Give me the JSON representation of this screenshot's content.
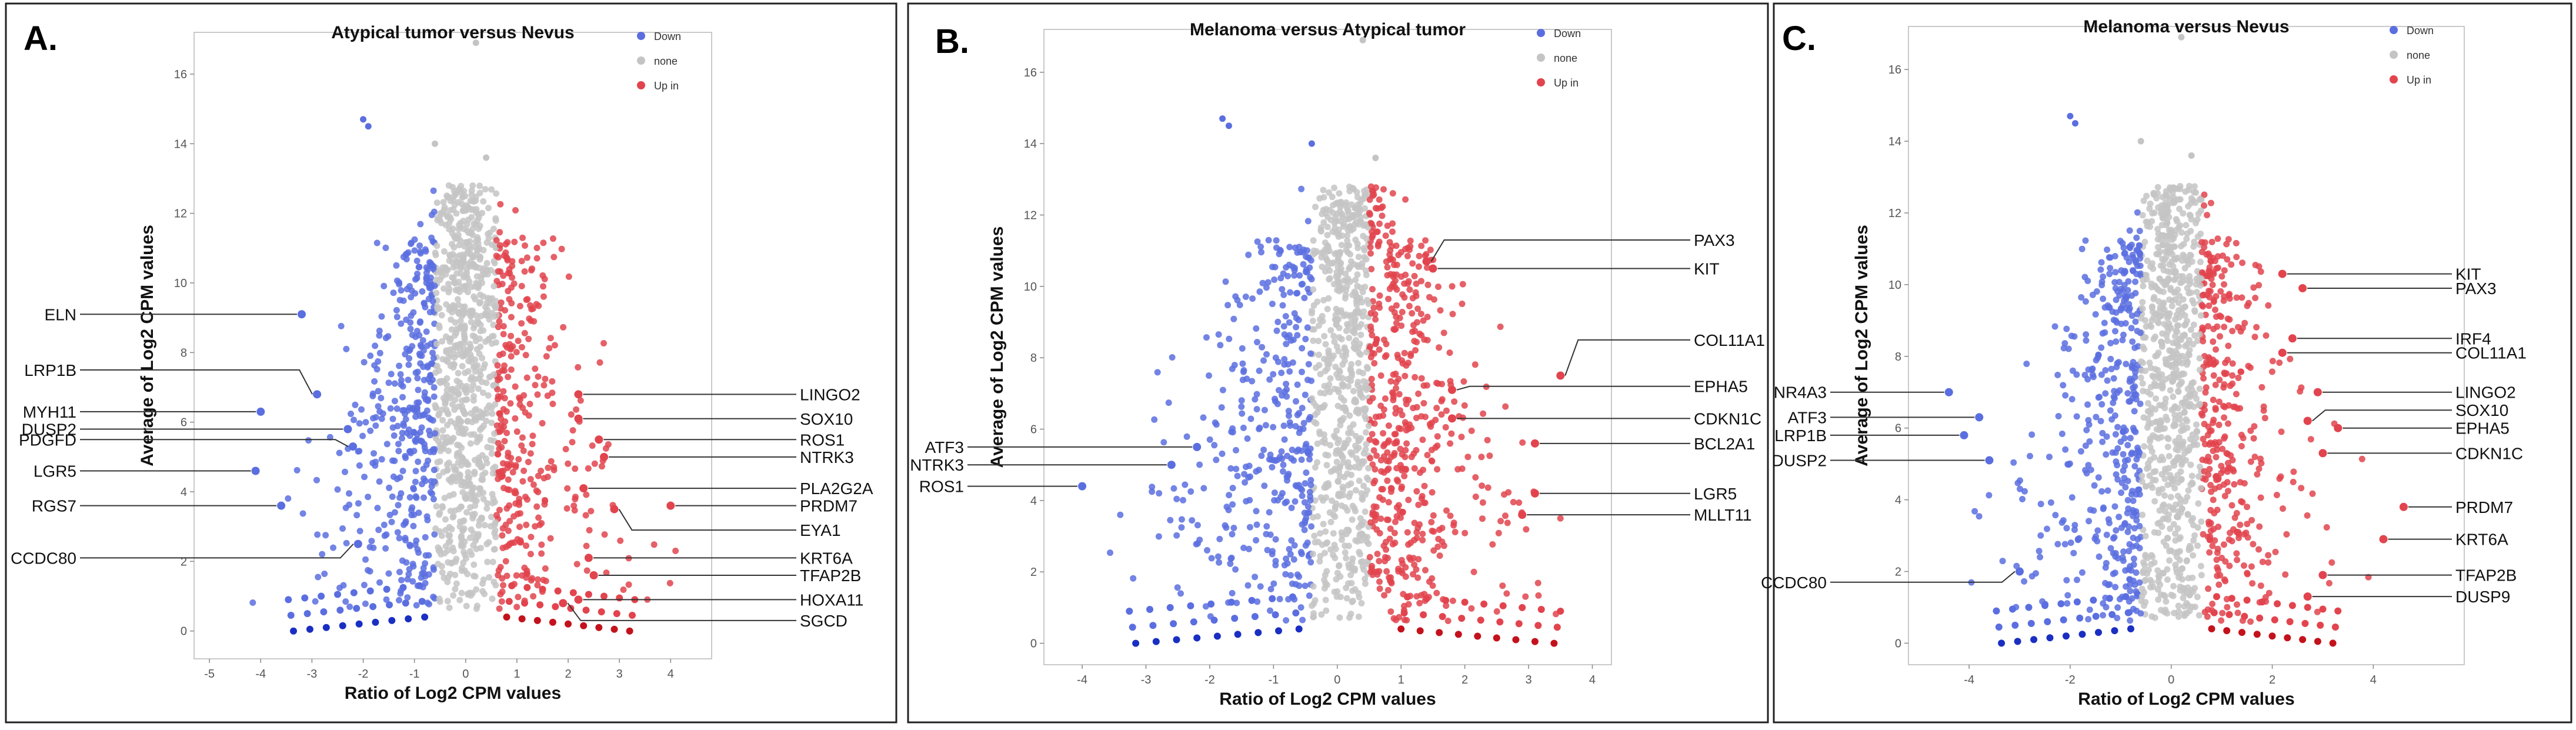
{
  "figure": {
    "panels": [
      {
        "letter": "A.",
        "title": "Atypical tumor versus Nevus"
      },
      {
        "letter": "B.",
        "title": "Melanoma versus Atypical tumor"
      },
      {
        "letter": "C.",
        "title": "Melanoma versus Nevus"
      }
    ]
  },
  "colors": {
    "down": "#5b6ee0",
    "none": "#c4c4c4",
    "up": "#e2444e",
    "down_dark": "#1a2fc2",
    "up_dark": "#c4121c"
  },
  "chart_data": [
    {
      "type": "scatter",
      "title": "Atypical tumor versus Nevus",
      "xlabel": "Ratio of Log2 CPM values",
      "ylabel": "Average of Log2 CPM values",
      "xlim": [
        -5.3,
        4.8
      ],
      "ylim": [
        -0.8,
        17.2
      ],
      "xticks": [
        "-5",
        "-4",
        "-3",
        "-2",
        "-1",
        "0",
        "1",
        "2",
        "3",
        "4"
      ],
      "yticks": [
        "0",
        "2",
        "4",
        "6",
        "8",
        "10",
        "12",
        "14",
        "16"
      ],
      "legend": {
        "position": "top-right",
        "entries": [
          "Down",
          "none",
          "Up in"
        ]
      },
      "down_threshold": -0.6,
      "up_threshold": 0.6,
      "core_center": 0.0,
      "labels": [
        {
          "gene": "ELN",
          "x": -3.2,
          "y": 9.1,
          "side": "left",
          "ly": 9.1
        },
        {
          "gene": "LRP1B",
          "x": -2.9,
          "y": 6.8,
          "side": "left",
          "ly": 7.5
        },
        {
          "gene": "MYH11",
          "x": -4.0,
          "y": 6.3,
          "side": "left",
          "ly": 6.3
        },
        {
          "gene": "DUSP2",
          "x": -2.3,
          "y": 5.8,
          "side": "left",
          "ly": 5.8
        },
        {
          "gene": "PDGFD",
          "x": -2.2,
          "y": 5.3,
          "side": "left",
          "ly": 5.5
        },
        {
          "gene": "LGR5",
          "x": -4.1,
          "y": 4.6,
          "side": "left",
          "ly": 4.6
        },
        {
          "gene": "RGS7",
          "x": -3.6,
          "y": 3.6,
          "side": "left",
          "ly": 3.6
        },
        {
          "gene": "CCDC80",
          "x": -2.1,
          "y": 2.5,
          "side": "left",
          "ly": 2.1
        },
        {
          "gene": "LINGO2",
          "x": 2.2,
          "y": 6.8,
          "side": "right",
          "ly": 6.8
        },
        {
          "gene": "SOX10",
          "x": 2.2,
          "y": 6.1,
          "side": "right",
          "ly": 6.1
        },
        {
          "gene": "ROS1",
          "x": 2.6,
          "y": 5.5,
          "side": "right",
          "ly": 5.5
        },
        {
          "gene": "NTRK3",
          "x": 2.7,
          "y": 5.0,
          "side": "right",
          "ly": 5.0
        },
        {
          "gene": "PLA2G2A",
          "x": 2.3,
          "y": 4.1,
          "side": "right",
          "ly": 4.1
        },
        {
          "gene": "PRDM7",
          "x": 4.0,
          "y": 3.6,
          "side": "right",
          "ly": 3.6
        },
        {
          "gene": "EYA1",
          "x": 2.9,
          "y": 3.5,
          "side": "right",
          "ly": 2.9
        },
        {
          "gene": "KRT6A",
          "x": 2.4,
          "y": 2.1,
          "side": "right",
          "ly": 2.1
        },
        {
          "gene": "TFAP2B",
          "x": 2.5,
          "y": 1.6,
          "side": "right",
          "ly": 1.6
        },
        {
          "gene": "HOXA11",
          "x": 2.2,
          "y": 0.9,
          "side": "right",
          "ly": 0.9
        },
        {
          "gene": "SGCD",
          "x": 1.9,
          "y": 0.8,
          "side": "right",
          "ly": 0.3
        }
      ]
    },
    {
      "type": "scatter",
      "title": "Melanoma versus Atypical tumor",
      "xlabel": "Ratio of Log2 CPM values",
      "ylabel": "Average of Log2 CPM values",
      "xlim": [
        -4.6,
        4.3
      ],
      "ylim": [
        -0.6,
        17.2
      ],
      "xticks": [
        "-4",
        "-3",
        "-2",
        "-1",
        "0",
        "1",
        "2",
        "3",
        "4"
      ],
      "yticks": [
        "0",
        "2",
        "4",
        "6",
        "8",
        "10",
        "12",
        "14",
        "16"
      ],
      "legend": {
        "position": "top-right",
        "entries": [
          "Down",
          "none",
          "Up in"
        ]
      },
      "down_threshold": -0.4,
      "up_threshold": 0.5,
      "core_center": 0.2,
      "labels": [
        {
          "gene": "PAX3",
          "x": 1.4,
          "y": 10.7,
          "side": "right",
          "ly": 11.3
        },
        {
          "gene": "KIT",
          "x": 1.5,
          "y": 10.5,
          "side": "right",
          "ly": 10.5
        },
        {
          "gene": "COL11A1",
          "x": 3.5,
          "y": 7.5,
          "side": "right",
          "ly": 8.5
        },
        {
          "gene": "EPHA5",
          "x": 1.8,
          "y": 7.1,
          "side": "right",
          "ly": 7.2
        },
        {
          "gene": "CDKN1C",
          "x": 1.8,
          "y": 6.3,
          "side": "right",
          "ly": 6.3
        },
        {
          "gene": "BCL2A1",
          "x": 3.1,
          "y": 5.6,
          "side": "right",
          "ly": 5.6
        },
        {
          "gene": "LGR5",
          "x": 3.1,
          "y": 4.2,
          "side": "right",
          "ly": 4.2
        },
        {
          "gene": "MLLT11",
          "x": 2.9,
          "y": 3.6,
          "side": "right",
          "ly": 3.6
        },
        {
          "gene": "ATF3",
          "x": -2.2,
          "y": 5.5,
          "side": "left",
          "ly": 5.5
        },
        {
          "gene": "NTRK3",
          "x": -2.6,
          "y": 5.0,
          "side": "left",
          "ly": 5.0
        },
        {
          "gene": "ROS1",
          "x": -4.0,
          "y": 4.4,
          "side": "left",
          "ly": 4.4
        }
      ]
    },
    {
      "type": "scatter",
      "title": "Melanoma versus Nevus",
      "xlabel": "Ratio of Log2 CPM values",
      "ylabel": "Average of Log2 CPM values",
      "xlim": [
        -5.2,
        5.8
      ],
      "ylim": [
        -0.6,
        17.2
      ],
      "xticks": [
        "-4",
        "-2",
        "0",
        "2",
        "4"
      ],
      "yticks": [
        "0",
        "2",
        "4",
        "6",
        "8",
        "10",
        "12",
        "14",
        "16"
      ],
      "legend": {
        "position": "top-right",
        "entries": [
          "Down",
          "none",
          "Up in"
        ]
      },
      "down_threshold": -0.6,
      "up_threshold": 0.6,
      "core_center": 0.0,
      "labels": [
        {
          "gene": "KIT",
          "x": 2.2,
          "y": 10.3,
          "side": "right",
          "ly": 10.3
        },
        {
          "gene": "PAX3",
          "x": 2.6,
          "y": 9.9,
          "side": "right",
          "ly": 9.9
        },
        {
          "gene": "IRF4",
          "x": 2.4,
          "y": 8.5,
          "side": "right",
          "ly": 8.5
        },
        {
          "gene": "COL11A1",
          "x": 2.2,
          "y": 8.1,
          "side": "right",
          "ly": 8.1
        },
        {
          "gene": "LINGO2",
          "x": 2.9,
          "y": 7.0,
          "side": "right",
          "ly": 7.0
        },
        {
          "gene": "SOX10",
          "x": 2.7,
          "y": 6.2,
          "side": "right",
          "ly": 6.5
        },
        {
          "gene": "EPHA5",
          "x": 3.3,
          "y": 6.0,
          "side": "right",
          "ly": 6.0
        },
        {
          "gene": "CDKN1C",
          "x": 3.0,
          "y": 5.3,
          "side": "right",
          "ly": 5.3
        },
        {
          "gene": "PRDM7",
          "x": 4.6,
          "y": 3.8,
          "side": "right",
          "ly": 3.8
        },
        {
          "gene": "KRT6A",
          "x": 4.2,
          "y": 2.9,
          "side": "right",
          "ly": 2.9
        },
        {
          "gene": "TFAP2B",
          "x": 3.0,
          "y": 1.9,
          "side": "right",
          "ly": 1.9
        },
        {
          "gene": "DUSP9",
          "x": 2.7,
          "y": 1.3,
          "side": "right",
          "ly": 1.3
        },
        {
          "gene": "NR4A3",
          "x": -4.4,
          "y": 7.0,
          "side": "left",
          "ly": 7.0
        },
        {
          "gene": "ATF3",
          "x": -3.8,
          "y": 6.3,
          "side": "left",
          "ly": 6.3
        },
        {
          "gene": "LRP1B",
          "x": -4.1,
          "y": 5.8,
          "side": "left",
          "ly": 5.8
        },
        {
          "gene": "DUSP2",
          "x": -3.6,
          "y": 5.1,
          "side": "left",
          "ly": 5.1
        },
        {
          "gene": "CCDC80",
          "x": -3.0,
          "y": 2.0,
          "side": "left",
          "ly": 1.7
        }
      ]
    }
  ]
}
